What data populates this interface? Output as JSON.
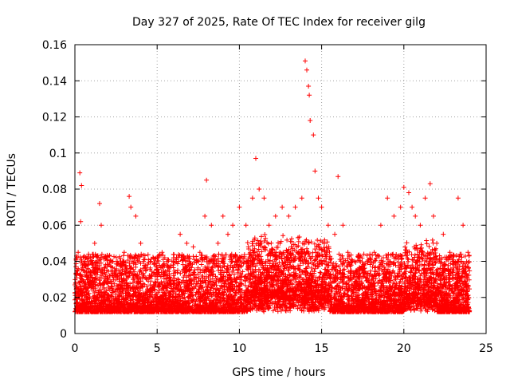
{
  "chart_data": {
    "type": "scatter",
    "title": "Day 327 of 2025, Rate Of TEC Index for receiver gilg",
    "xlabel": "GPS time / hours",
    "ylabel": "ROTI / TECUs",
    "xlim": [
      0,
      25
    ],
    "ylim": [
      0,
      0.16
    ],
    "x_ticks": [
      "0",
      "5",
      "10",
      "15",
      "20",
      "25"
    ],
    "y_ticks": [
      "0",
      "0.02",
      "0.04",
      "0.06",
      "0.08",
      "0.1",
      "0.12",
      "0.14",
      "0.16"
    ],
    "grid": true,
    "marker": "+",
    "color": "#ff0000",
    "series": [
      {
        "x": [
          0.1,
          0.2,
          0.3,
          0.35,
          0.4,
          0.5,
          0.6,
          0.8,
          1.0,
          1.2,
          1.5,
          1.6,
          1.8,
          2.0,
          2.3,
          2.6,
          3.0,
          3.3,
          3.4,
          3.7,
          4.0,
          4.3,
          4.6,
          5.0,
          5.3,
          5.6,
          6.0,
          6.4,
          6.8,
          7.2,
          7.6,
          7.9,
          8.0,
          8.3,
          8.7,
          9.0,
          9.3,
          9.6,
          10.0,
          10.4,
          10.8,
          11.0,
          11.2,
          11.5,
          11.8,
          12.2,
          12.6,
          13.0,
          13.4,
          13.8,
          14.0,
          14.1,
          14.2,
          14.25,
          14.3,
          14.5,
          14.6,
          14.8,
          15.0,
          15.4,
          15.8,
          16.0,
          16.3,
          16.6,
          17.0,
          17.4,
          17.8,
          18.2,
          18.6,
          19.0,
          19.4,
          19.8,
          20.0,
          20.3,
          20.5,
          20.7,
          21.0,
          21.3,
          21.6,
          21.8,
          22.0,
          22.4,
          22.8,
          23.0,
          23.3,
          23.6,
          23.9
        ],
        "y": [
          0.025,
          0.045,
          0.089,
          0.062,
          0.082,
          0.035,
          0.04,
          0.03,
          0.028,
          0.05,
          0.072,
          0.06,
          0.035,
          0.03,
          0.04,
          0.032,
          0.045,
          0.076,
          0.07,
          0.065,
          0.05,
          0.035,
          0.04,
          0.03,
          0.045,
          0.038,
          0.042,
          0.055,
          0.05,
          0.048,
          0.045,
          0.065,
          0.085,
          0.06,
          0.05,
          0.065,
          0.055,
          0.06,
          0.07,
          0.06,
          0.075,
          0.097,
          0.08,
          0.075,
          0.06,
          0.065,
          0.07,
          0.065,
          0.07,
          0.075,
          0.151,
          0.146,
          0.137,
          0.132,
          0.118,
          0.11,
          0.09,
          0.075,
          0.07,
          0.06,
          0.055,
          0.087,
          0.06,
          0.045,
          0.04,
          0.035,
          0.04,
          0.045,
          0.06,
          0.075,
          0.065,
          0.07,
          0.081,
          0.078,
          0.07,
          0.065,
          0.06,
          0.075,
          0.083,
          0.065,
          0.05,
          0.055,
          0.045,
          0.04,
          0.075,
          0.06,
          0.045
        ]
      }
    ]
  }
}
